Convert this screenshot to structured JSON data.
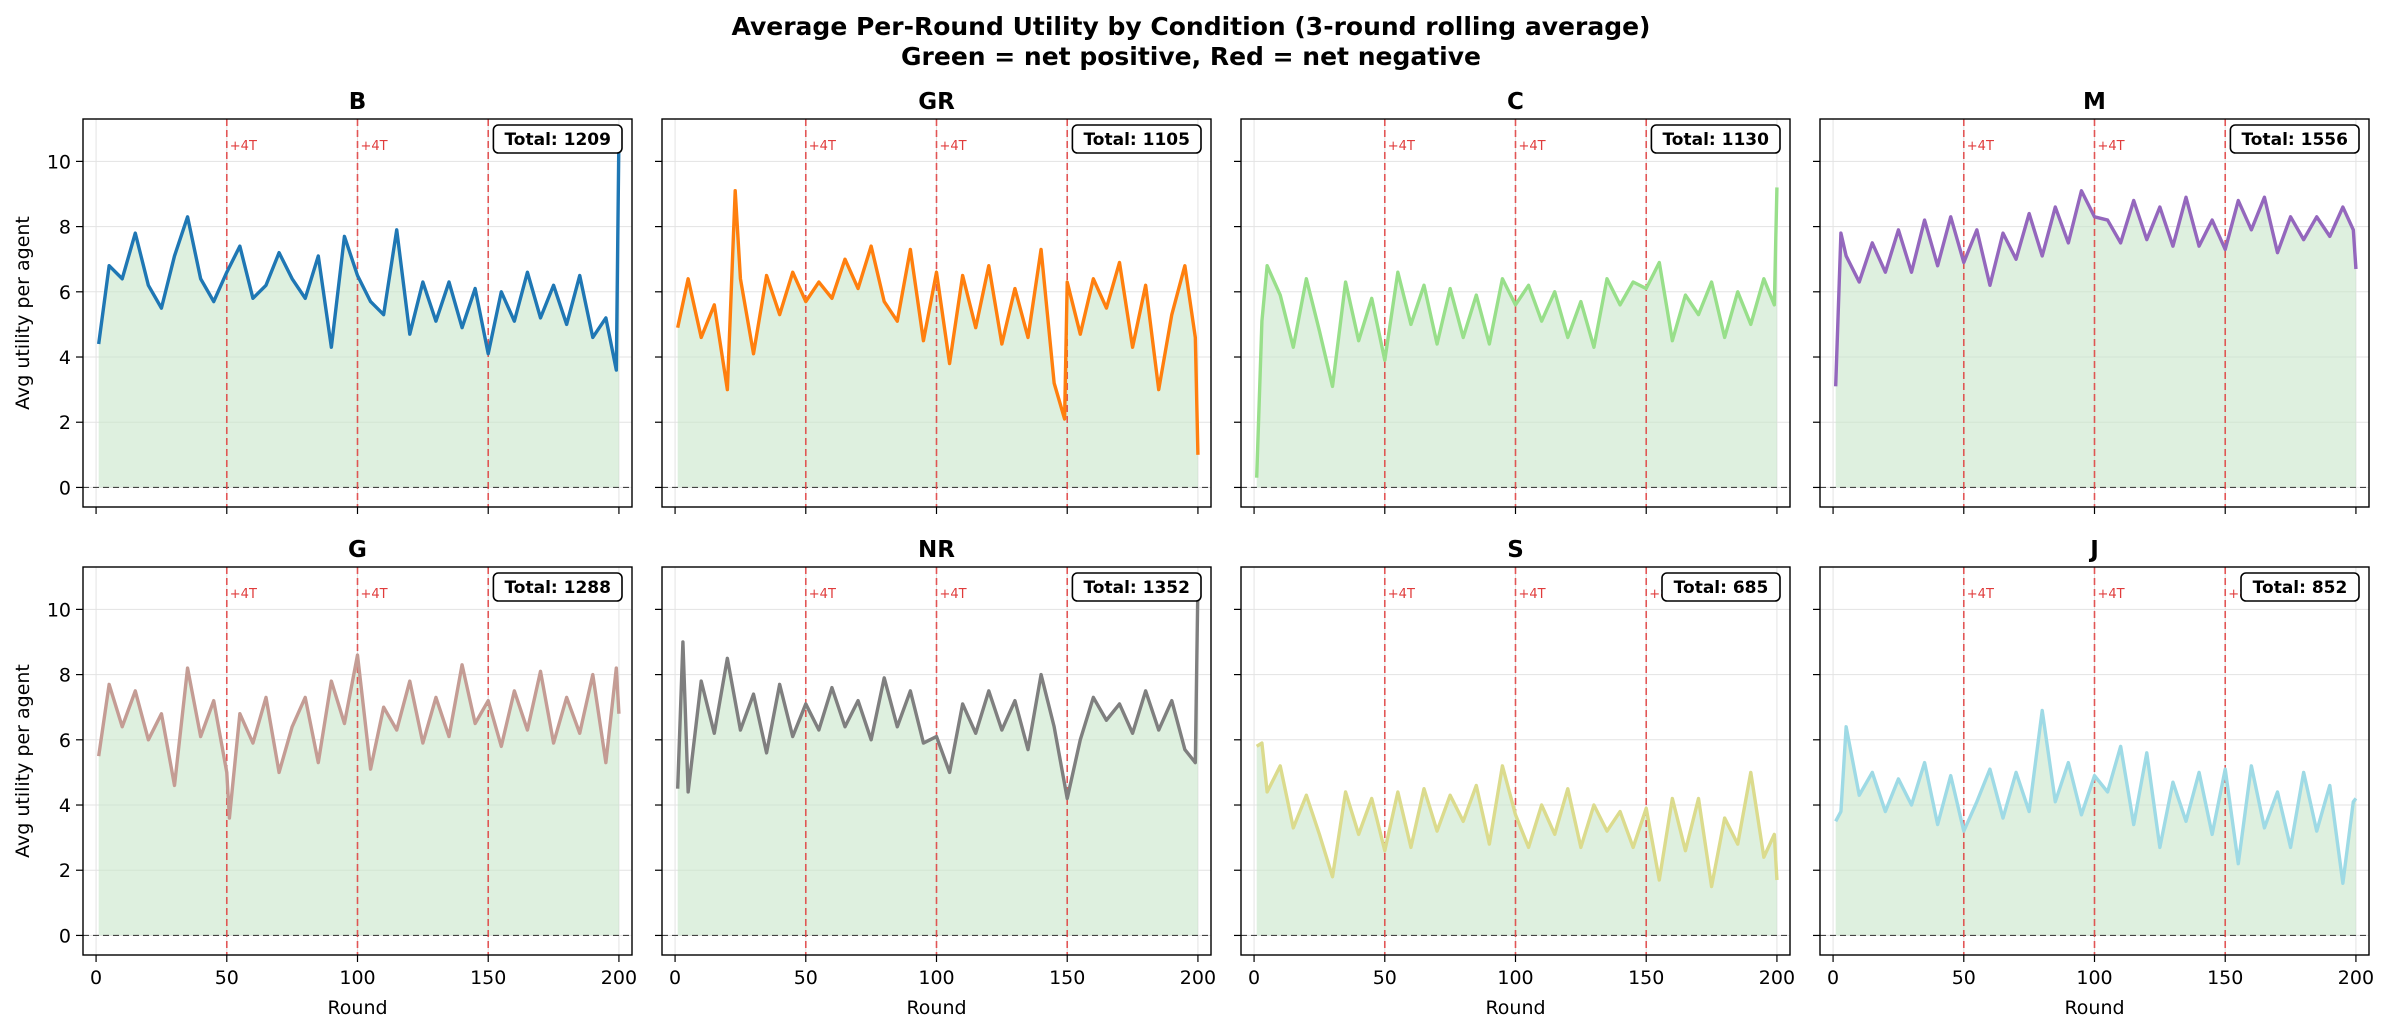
{
  "figure": {
    "title_line1": "Average Per-Round Utility by Condition (3-round rolling average)",
    "title_line2": "Green = net positive, Red = net negative",
    "positive_fill_color": "#c8e6c9",
    "negative_fill_color": "#ffcdd2",
    "vline_color": "#e03c3c"
  },
  "chart_data": {
    "type": "line",
    "xlabel": "Round",
    "ylabel": "Avg utility per agent",
    "xlim": [
      -5,
      205
    ],
    "ylim": [
      -0.6,
      11.3
    ],
    "xticks": [
      0,
      50,
      100,
      150,
      200
    ],
    "yticks": [
      0,
      2,
      4,
      6,
      8,
      10
    ],
    "grid": true,
    "zero_line": 0,
    "vlines": [
      {
        "x": 50,
        "label": "+4T"
      },
      {
        "x": 100,
        "label": "+4T"
      },
      {
        "x": 150,
        "label": "+8T"
      }
    ],
    "panels": [
      {
        "name": "B",
        "total_label": "Total: 1209",
        "color": "#1f77b4",
        "x": [
          1,
          5,
          10,
          15,
          20,
          25,
          30,
          35,
          40,
          45,
          50,
          55,
          60,
          65,
          70,
          75,
          80,
          85,
          90,
          95,
          100,
          105,
          110,
          115,
          120,
          125,
          130,
          135,
          140,
          145,
          150,
          155,
          160,
          165,
          170,
          175,
          180,
          185,
          190,
          195,
          199,
          200
        ],
        "y": [
          4.4,
          6.8,
          6.4,
          7.8,
          6.2,
          5.5,
          7.1,
          8.3,
          6.4,
          5.7,
          6.6,
          7.4,
          5.8,
          6.2,
          7.2,
          6.4,
          5.8,
          7.1,
          4.3,
          7.7,
          6.5,
          5.7,
          5.3,
          7.9,
          4.7,
          6.3,
          5.1,
          6.3,
          4.9,
          6.1,
          4.1,
          6.0,
          5.1,
          6.6,
          5.2,
          6.2,
          5.0,
          6.5,
          4.6,
          5.2,
          3.6,
          10.8
        ]
      },
      {
        "name": "GR",
        "total_label": "Total: 1105",
        "color": "#ff7f0e",
        "x": [
          1,
          5,
          10,
          15,
          20,
          23,
          25,
          30,
          35,
          40,
          45,
          50,
          55,
          60,
          65,
          70,
          75,
          80,
          85,
          90,
          95,
          100,
          105,
          110,
          115,
          120,
          125,
          130,
          135,
          140,
          145,
          149,
          150,
          155,
          160,
          165,
          170,
          175,
          180,
          185,
          190,
          195,
          199,
          200
        ],
        "y": [
          4.9,
          6.4,
          4.6,
          5.6,
          3.0,
          9.1,
          6.4,
          4.1,
          6.5,
          5.3,
          6.6,
          5.7,
          6.3,
          5.8,
          7.0,
          6.1,
          7.4,
          5.7,
          5.1,
          7.3,
          4.5,
          6.6,
          3.8,
          6.5,
          4.9,
          6.8,
          4.4,
          6.1,
          4.6,
          7.3,
          3.2,
          2.1,
          6.3,
          4.7,
          6.4,
          5.5,
          6.9,
          4.3,
          6.2,
          3.0,
          5.3,
          6.8,
          4.6,
          1.0
        ]
      },
      {
        "name": "C",
        "total_label": "Total: 1130",
        "color": "#98df8a",
        "x": [
          1,
          3,
          5,
          10,
          15,
          20,
          25,
          30,
          35,
          40,
          45,
          50,
          55,
          60,
          65,
          70,
          75,
          80,
          85,
          90,
          95,
          100,
          105,
          110,
          115,
          120,
          125,
          130,
          135,
          140,
          145,
          150,
          155,
          160,
          165,
          170,
          175,
          180,
          185,
          190,
          195,
          199,
          200
        ],
        "y": [
          0.3,
          5.1,
          6.8,
          5.9,
          4.3,
          6.4,
          4.8,
          3.1,
          6.3,
          4.5,
          5.8,
          3.9,
          6.6,
          5.0,
          6.2,
          4.4,
          6.1,
          4.6,
          5.9,
          4.4,
          6.4,
          5.6,
          6.2,
          5.1,
          6.0,
          4.6,
          5.7,
          4.3,
          6.4,
          5.6,
          6.3,
          6.1,
          6.9,
          4.5,
          5.9,
          5.3,
          6.3,
          4.6,
          6.0,
          5.0,
          6.4,
          5.6,
          9.2
        ]
      },
      {
        "name": "M",
        "total_label": "Total: 1556",
        "color": "#9467bd",
        "x": [
          1,
          3,
          5,
          10,
          15,
          20,
          25,
          30,
          35,
          40,
          45,
          50,
          55,
          60,
          65,
          70,
          75,
          80,
          85,
          90,
          95,
          100,
          105,
          110,
          115,
          120,
          125,
          130,
          135,
          140,
          145,
          150,
          155,
          160,
          165,
          170,
          175,
          180,
          185,
          190,
          195,
          199,
          200
        ],
        "y": [
          3.1,
          7.8,
          7.1,
          6.3,
          7.5,
          6.6,
          7.9,
          6.6,
          8.2,
          6.8,
          8.3,
          6.9,
          7.9,
          6.2,
          7.8,
          7.0,
          8.4,
          7.1,
          8.6,
          7.5,
          9.1,
          8.3,
          8.2,
          7.5,
          8.8,
          7.6,
          8.6,
          7.4,
          8.9,
          7.4,
          8.2,
          7.3,
          8.8,
          7.9,
          8.9,
          7.2,
          8.3,
          7.6,
          8.3,
          7.7,
          8.6,
          7.9,
          6.7
        ]
      },
      {
        "name": "G",
        "total_label": "Total: 1288",
        "color": "#c49c94",
        "x": [
          1,
          5,
          10,
          15,
          20,
          25,
          30,
          35,
          40,
          45,
          50,
          51,
          55,
          60,
          65,
          70,
          75,
          80,
          85,
          90,
          95,
          100,
          105,
          110,
          115,
          120,
          125,
          130,
          135,
          140,
          145,
          150,
          155,
          160,
          165,
          170,
          175,
          180,
          185,
          190,
          195,
          199,
          200
        ],
        "y": [
          5.5,
          7.7,
          6.4,
          7.5,
          6.0,
          6.8,
          4.6,
          8.2,
          6.1,
          7.2,
          5.0,
          3.6,
          6.8,
          5.9,
          7.3,
          5.0,
          6.4,
          7.3,
          5.3,
          7.8,
          6.5,
          8.6,
          5.1,
          7.0,
          6.3,
          7.8,
          5.9,
          7.3,
          6.1,
          8.3,
          6.5,
          7.2,
          5.8,
          7.5,
          6.3,
          8.1,
          5.9,
          7.3,
          6.2,
          8.0,
          5.3,
          8.2,
          6.8
        ]
      },
      {
        "name": "NR",
        "total_label": "Total: 1352",
        "color": "#7f7f7f",
        "x": [
          1,
          3,
          5,
          10,
          15,
          20,
          25,
          30,
          35,
          40,
          45,
          50,
          55,
          60,
          65,
          70,
          75,
          80,
          85,
          90,
          95,
          100,
          105,
          110,
          115,
          120,
          125,
          130,
          135,
          140,
          145,
          150,
          155,
          160,
          165,
          170,
          175,
          180,
          185,
          190,
          195,
          199,
          200
        ],
        "y": [
          4.5,
          9.0,
          4.4,
          7.8,
          6.2,
          8.5,
          6.3,
          7.4,
          5.6,
          7.7,
          6.1,
          7.1,
          6.3,
          7.6,
          6.4,
          7.2,
          6.0,
          7.9,
          6.4,
          7.5,
          5.9,
          6.1,
          5.0,
          7.1,
          6.2,
          7.5,
          6.3,
          7.2,
          5.7,
          8.0,
          6.4,
          4.2,
          6.0,
          7.3,
          6.6,
          7.1,
          6.2,
          7.5,
          6.3,
          7.2,
          5.7,
          5.3,
          10.8
        ]
      },
      {
        "name": "S",
        "total_label": "Total: 685",
        "color": "#dbdb8d",
        "x": [
          1,
          3,
          5,
          10,
          15,
          20,
          25,
          30,
          35,
          40,
          45,
          50,
          55,
          60,
          65,
          70,
          75,
          80,
          85,
          90,
          95,
          100,
          105,
          110,
          115,
          120,
          125,
          130,
          135,
          140,
          145,
          150,
          155,
          160,
          165,
          170,
          175,
          180,
          185,
          190,
          195,
          199,
          200
        ],
        "y": [
          5.8,
          5.9,
          4.4,
          5.2,
          3.3,
          4.3,
          3.1,
          1.8,
          4.4,
          3.1,
          4.2,
          2.6,
          4.4,
          2.7,
          4.5,
          3.2,
          4.3,
          3.5,
          4.6,
          2.8,
          5.2,
          3.7,
          2.7,
          4.0,
          3.1,
          4.5,
          2.7,
          4.0,
          3.2,
          3.8,
          2.7,
          3.9,
          1.7,
          4.2,
          2.6,
          4.2,
          1.5,
          3.6,
          2.8,
          5.0,
          2.4,
          3.1,
          1.7
        ]
      },
      {
        "name": "J",
        "total_label": "Total: 852",
        "color": "#9edae5",
        "x": [
          1,
          3,
          5,
          10,
          15,
          20,
          25,
          30,
          35,
          40,
          45,
          50,
          55,
          60,
          65,
          70,
          75,
          80,
          85,
          90,
          95,
          100,
          105,
          110,
          115,
          120,
          125,
          130,
          135,
          140,
          145,
          150,
          155,
          160,
          165,
          170,
          175,
          180,
          185,
          190,
          195,
          199,
          200
        ],
        "y": [
          3.5,
          3.8,
          6.4,
          4.3,
          5.0,
          3.8,
          4.8,
          4.0,
          5.3,
          3.4,
          4.9,
          3.2,
          4.1,
          5.1,
          3.6,
          5.0,
          3.8,
          6.9,
          4.1,
          5.3,
          3.7,
          4.9,
          4.4,
          5.8,
          3.4,
          5.6,
          2.7,
          4.7,
          3.5,
          5.0,
          3.1,
          5.1,
          2.2,
          5.2,
          3.3,
          4.4,
          2.7,
          5.0,
          3.2,
          4.6,
          1.6,
          4.1,
          4.2
        ]
      }
    ]
  }
}
